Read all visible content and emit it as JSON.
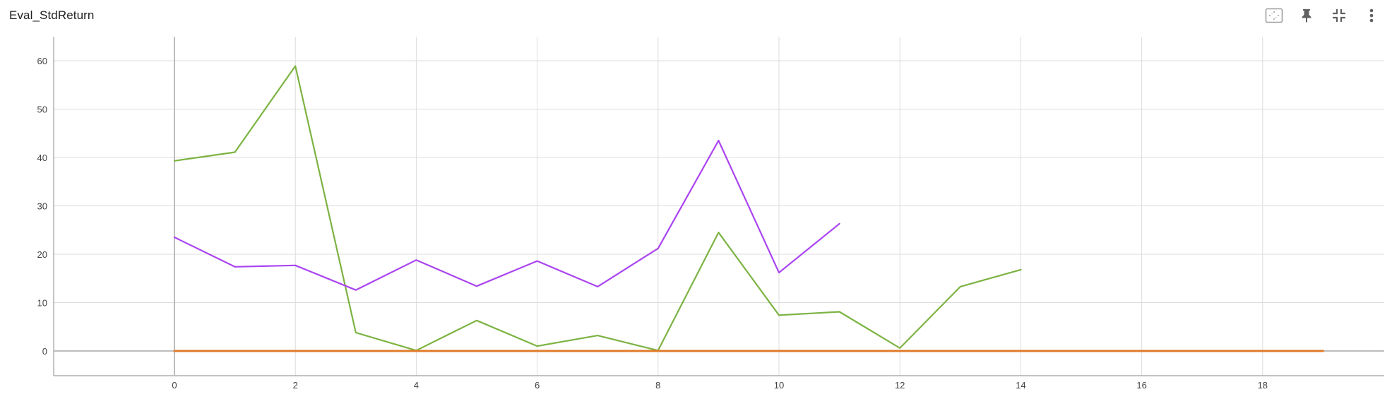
{
  "card": {
    "title": "Eval_StdReturn"
  },
  "toolbar": {
    "icons": [
      "fit-domain-icon",
      "pin-icon",
      "collapse-icon",
      "more-vert-icon"
    ]
  },
  "colors": {
    "grid": "#dcdcdc",
    "axis": "#9e9e9e",
    "series": [
      "#7cb342",
      "#aa44f0",
      "#e07b2a"
    ]
  },
  "chart_data": {
    "type": "line",
    "title": "Eval_StdReturn",
    "xlabel": "",
    "ylabel": "",
    "xlim": [
      -2,
      20
    ],
    "ylim": [
      -5,
      65
    ],
    "xticks": [
      0,
      2,
      4,
      6,
      8,
      10,
      12,
      14,
      16,
      18
    ],
    "yticks": [
      0,
      10,
      20,
      30,
      40,
      50,
      60
    ],
    "grid": true,
    "legend": "none",
    "series": [
      {
        "color": "#7cb342",
        "x": [
          0,
          1,
          2,
          3,
          4,
          5,
          6,
          7,
          8,
          9,
          10,
          11,
          12,
          13,
          14
        ],
        "values": [
          39.3,
          41.1,
          58.9,
          3.8,
          0.1,
          6.3,
          1.0,
          3.2,
          0.1,
          24.5,
          7.4,
          8.1,
          0.6,
          13.3,
          16.8
        ]
      },
      {
        "color": "#aa44f0",
        "x": [
          0,
          1,
          2,
          3,
          4,
          5,
          6,
          7,
          8,
          9,
          10,
          11
        ],
        "values": [
          23.5,
          17.4,
          17.7,
          12.6,
          18.8,
          13.4,
          18.6,
          13.3,
          21.2,
          43.5,
          16.2,
          26.3
        ]
      },
      {
        "color": "#e07b2a",
        "x": [
          0,
          1,
          2,
          3,
          4,
          5,
          6,
          7,
          8,
          9,
          10,
          11,
          12,
          13,
          14,
          15,
          16,
          17,
          18,
          19
        ],
        "values": [
          0,
          0,
          0,
          0,
          0,
          0,
          0,
          0,
          0,
          0,
          0,
          0,
          0,
          0,
          0,
          0,
          0,
          0,
          0,
          0
        ]
      }
    ]
  }
}
